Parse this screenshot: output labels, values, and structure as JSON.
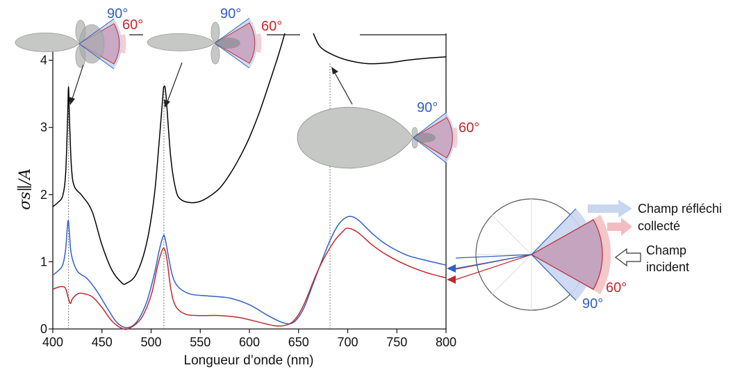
{
  "chart_data": {
    "type": "line",
    "xlabel": "Longueur d’onde (nm)",
    "ylabel": "σs∥/A",
    "xlim": [
      400,
      800
    ],
    "ylim": [
      0,
      4.4
    ],
    "xticks": [
      "400",
      "450",
      "500",
      "550",
      "600",
      "650",
      "700",
      "750",
      "800"
    ],
    "yticks": [
      "0",
      "1",
      "2",
      "3",
      "4"
    ],
    "grid": false,
    "markers_nm": [
      416,
      513,
      682
    ],
    "series": [
      {
        "name": "",
        "color": "#000000",
        "points": [
          [
            400,
            1.82
          ],
          [
            405,
            1.88
          ],
          [
            410,
            1.98
          ],
          [
            413,
            2.3
          ],
          [
            415,
            3.1
          ],
          [
            416,
            3.6
          ],
          [
            417,
            3.1
          ],
          [
            419,
            2.4
          ],
          [
            422,
            2.12
          ],
          [
            430,
            1.98
          ],
          [
            440,
            1.75
          ],
          [
            450,
            1.25
          ],
          [
            460,
            0.88
          ],
          [
            470,
            0.69
          ],
          [
            475,
            0.68
          ],
          [
            485,
            0.82
          ],
          [
            495,
            1.25
          ],
          [
            503,
            1.95
          ],
          [
            508,
            2.75
          ],
          [
            512,
            3.48
          ],
          [
            513,
            3.6
          ],
          [
            515,
            3.5
          ],
          [
            520,
            2.55
          ],
          [
            525,
            2.08
          ],
          [
            530,
            1.93
          ],
          [
            540,
            1.88
          ],
          [
            550,
            1.9
          ],
          [
            560,
            1.98
          ],
          [
            570,
            2.1
          ],
          [
            580,
            2.3
          ],
          [
            590,
            2.55
          ],
          [
            600,
            2.85
          ],
          [
            610,
            3.22
          ],
          [
            620,
            3.65
          ],
          [
            630,
            4.1
          ],
          [
            636,
            4.4
          ],
          [
            665,
            4.4
          ],
          [
            672,
            4.2
          ],
          [
            685,
            4.08
          ],
          [
            700,
            4.0
          ],
          [
            720,
            3.95
          ],
          [
            740,
            3.96
          ],
          [
            760,
            4.0
          ],
          [
            780,
            4.03
          ],
          [
            800,
            4.05
          ]
        ]
      },
      {
        "name": "",
        "color": "#3060c0",
        "points": [
          [
            400,
            0.8
          ],
          [
            405,
            0.86
          ],
          [
            410,
            0.95
          ],
          [
            413,
            1.18
          ],
          [
            415,
            1.55
          ],
          [
            416,
            1.6
          ],
          [
            417,
            1.4
          ],
          [
            419,
            1.1
          ],
          [
            425,
            0.86
          ],
          [
            435,
            0.75
          ],
          [
            445,
            0.56
          ],
          [
            455,
            0.32
          ],
          [
            465,
            0.1
          ],
          [
            475,
            0.02
          ],
          [
            485,
            0.1
          ],
          [
            495,
            0.38
          ],
          [
            503,
            0.8
          ],
          [
            508,
            1.15
          ],
          [
            512,
            1.37
          ],
          [
            514,
            1.36
          ],
          [
            518,
            1.05
          ],
          [
            522,
            0.78
          ],
          [
            528,
            0.62
          ],
          [
            540,
            0.52
          ],
          [
            560,
            0.49
          ],
          [
            580,
            0.46
          ],
          [
            600,
            0.36
          ],
          [
            620,
            0.19
          ],
          [
            635,
            0.09
          ],
          [
            645,
            0.1
          ],
          [
            655,
            0.3
          ],
          [
            665,
            0.68
          ],
          [
            680,
            1.25
          ],
          [
            690,
            1.54
          ],
          [
            700,
            1.67
          ],
          [
            710,
            1.63
          ],
          [
            725,
            1.42
          ],
          [
            740,
            1.25
          ],
          [
            760,
            1.1
          ],
          [
            780,
            1.02
          ],
          [
            800,
            0.95
          ]
        ]
      },
      {
        "name": "",
        "color": "#c0282c",
        "points": [
          [
            400,
            0.59
          ],
          [
            405,
            0.62
          ],
          [
            410,
            0.63
          ],
          [
            413,
            0.6
          ],
          [
            416,
            0.45
          ],
          [
            418,
            0.38
          ],
          [
            420,
            0.45
          ],
          [
            425,
            0.52
          ],
          [
            430,
            0.53
          ],
          [
            440,
            0.48
          ],
          [
            450,
            0.32
          ],
          [
            460,
            0.12
          ],
          [
            470,
            0.01
          ],
          [
            478,
            0.01
          ],
          [
            490,
            0.16
          ],
          [
            500,
            0.5
          ],
          [
            506,
            0.9
          ],
          [
            510,
            1.12
          ],
          [
            513,
            1.2
          ],
          [
            516,
            1.05
          ],
          [
            520,
            0.6
          ],
          [
            525,
            0.34
          ],
          [
            535,
            0.22
          ],
          [
            550,
            0.2
          ],
          [
            570,
            0.2
          ],
          [
            590,
            0.17
          ],
          [
            610,
            0.1
          ],
          [
            625,
            0.05
          ],
          [
            635,
            0.05
          ],
          [
            645,
            0.12
          ],
          [
            655,
            0.35
          ],
          [
            670,
            0.88
          ],
          [
            685,
            1.28
          ],
          [
            695,
            1.45
          ],
          [
            700,
            1.5
          ],
          [
            710,
            1.44
          ],
          [
            725,
            1.25
          ],
          [
            740,
            1.1
          ],
          [
            760,
            0.95
          ],
          [
            780,
            0.84
          ],
          [
            800,
            0.76
          ]
        ]
      }
    ],
    "polar_diagrams": [
      {
        "label_blue": "90°",
        "label_red": "60°"
      },
      {
        "label_blue": "90°",
        "label_red": "60°"
      },
      {
        "label_blue": "90°",
        "label_red": "60°"
      }
    ],
    "legend": {
      "reflected_line1": "Champ réfléchi",
      "reflected_line2": "collecté",
      "incident_line1": "Champ",
      "incident_line2": "incident",
      "angle_red": "60°",
      "angle_blue": "90°"
    },
    "colors": {
      "blue": "#3060c0",
      "red": "#c0282c",
      "lobe": "#c6c8c6"
    }
  }
}
